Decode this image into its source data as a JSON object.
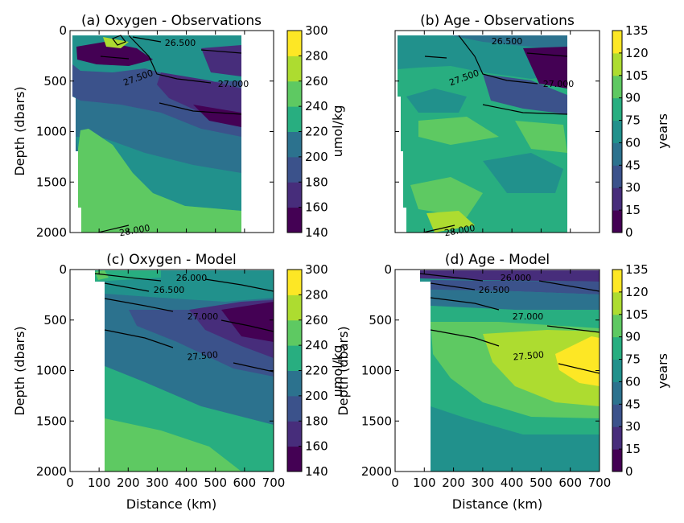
{
  "chart_data": [
    {
      "type": "contourf",
      "title": "(a) Oxygen - Observations",
      "xlabel": "",
      "ylabel": "Depth (dbars)",
      "xlim": [
        0,
        700
      ],
      "ylim": [
        2000,
        0
      ],
      "xticks": [
        0,
        100,
        200,
        300,
        400,
        500,
        600,
        700
      ],
      "yticks": [
        0,
        500,
        1000,
        1500,
        2000
      ],
      "show_x_ticklabels": false,
      "show_y_ticklabels": true,
      "colorbar": {
        "label": "umol/kg",
        "min": 140,
        "max": 300,
        "step": 20,
        "ticks": [
          140,
          160,
          180,
          200,
          220,
          240,
          260,
          280,
          300
        ]
      },
      "contour_labels": [
        "26.500",
        "27.500",
        "27.000",
        "28.000"
      ]
    },
    {
      "type": "contourf",
      "title": "(b) Age - Observations",
      "xlabel": "",
      "ylabel": "",
      "xlim": [
        0,
        700
      ],
      "ylim": [
        2000,
        0
      ],
      "xticks": [
        0,
        100,
        200,
        300,
        400,
        500,
        600,
        700
      ],
      "yticks": [
        0,
        500,
        1000,
        1500,
        2000
      ],
      "show_x_ticklabels": false,
      "show_y_ticklabels": false,
      "colorbar": {
        "label": "years",
        "min": 0,
        "max": 135,
        "step": 15,
        "ticks": [
          0,
          15,
          30,
          45,
          60,
          75,
          90,
          105,
          120,
          135
        ]
      },
      "contour_labels": [
        "26.500",
        "27.500",
        "27.000",
        "28.000"
      ]
    },
    {
      "type": "contourf",
      "title": "(c) Oxygen - Model",
      "xlabel": "Distance (km)",
      "ylabel": "Depth (dbars)",
      "xlim": [
        0,
        700
      ],
      "ylim": [
        2000,
        0
      ],
      "xticks": [
        0,
        100,
        200,
        300,
        400,
        500,
        600,
        700
      ],
      "yticks": [
        0,
        500,
        1000,
        1500,
        2000
      ],
      "show_x_ticklabels": true,
      "show_y_ticklabels": true,
      "colorbar": {
        "label": "umol/kg",
        "min": 140,
        "max": 300,
        "step": 20,
        "ticks": [
          140,
          160,
          180,
          200,
          220,
          240,
          260,
          280,
          300
        ]
      },
      "contour_labels": [
        "26.000",
        "26.500",
        "27.000",
        "27.500"
      ]
    },
    {
      "type": "contourf",
      "title": "(d) Age - Model",
      "xlabel": "Distance (km)",
      "ylabel": "Depth (dbars)",
      "xlim": [
        0,
        700
      ],
      "ylim": [
        2000,
        0
      ],
      "xticks": [
        0,
        100,
        200,
        300,
        400,
        500,
        600,
        700
      ],
      "yticks": [
        0,
        500,
        1000,
        1500,
        2000
      ],
      "show_x_ticklabels": true,
      "show_y_ticklabels": true,
      "colorbar": {
        "label": "years",
        "min": 0,
        "max": 135,
        "step": 15,
        "ticks": [
          0,
          15,
          30,
          45,
          60,
          75,
          90,
          105,
          120,
          135
        ]
      },
      "contour_labels": [
        "26.000",
        "26.500",
        "27.000",
        "27.500"
      ]
    }
  ],
  "colors": {
    "viridis": [
      "#440154",
      "#472d7b",
      "#3b528b",
      "#2c728e",
      "#21918c",
      "#28ae80",
      "#5ec962",
      "#addc30",
      "#fde725"
    ]
  }
}
